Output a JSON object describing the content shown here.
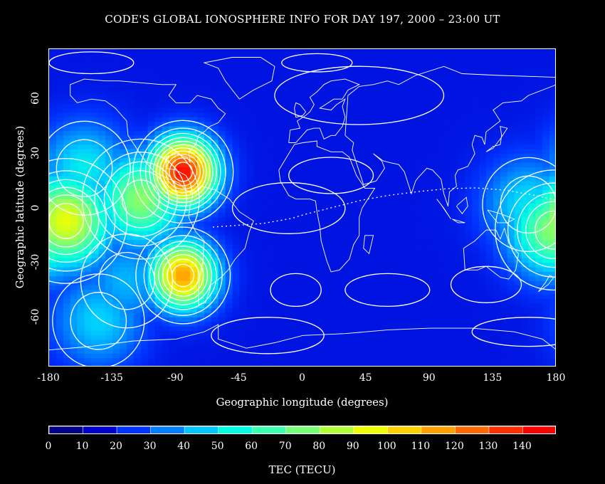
{
  "title": "CODE'S GLOBAL IONOSPHERE INFO FOR DAY 197, 2000 – 23:00 UT",
  "map": {
    "x_label": "Geographic longitude (degrees)",
    "y_label": "Geographic latitude (degrees)",
    "x_ticks": [
      "-180",
      "-135",
      "-90",
      "-45",
      "0",
      "45",
      "90",
      "135",
      "180"
    ],
    "y_ticks": [
      "60",
      "30",
      "0",
      "-30",
      "-60"
    ],
    "x_range": [
      -180,
      180
    ],
    "y_range": [
      -87.5,
      87.5
    ]
  },
  "colorbar": {
    "title": "TEC (TECU)",
    "labels": [
      "0",
      "10",
      "20",
      "30",
      "40",
      "50",
      "60",
      "70",
      "80",
      "90",
      "100",
      "110",
      "120",
      "130",
      "140"
    ],
    "range": [
      0,
      150
    ],
    "colors": [
      "#00008b",
      "#0000cd",
      "#0033ff",
      "#0080ff",
      "#00c8ff",
      "#00ffe0",
      "#3cffb0",
      "#78ff78",
      "#b4ff3c",
      "#f0ff00",
      "#ffd000",
      "#ffa000",
      "#ff6a00",
      "#ff3000",
      "#ff0000"
    ]
  },
  "chart_data": {
    "type": "heatmap",
    "title": "CODE'S GLOBAL IONOSPHERE INFO FOR DAY 197, 2000 – 23:00 UT",
    "xlabel": "Geographic longitude (degrees)",
    "ylabel": "Geographic latitude (degrees)",
    "xlim": [
      -180,
      180
    ],
    "ylim": [
      -87.5,
      87.5
    ],
    "colorbar_label": "TEC (TECU)",
    "value_range": [
      0,
      150
    ],
    "background_value": 15,
    "peaks": [
      {
        "lon": -85,
        "lat": 20,
        "value": 148
      },
      {
        "lon": -85,
        "lat": -37,
        "value": 118
      },
      {
        "lon": -168,
        "lat": -7,
        "value": 95
      },
      {
        "lon": -115,
        "lat": 5,
        "value": 78
      },
      {
        "lon": -155,
        "lat": 22,
        "value": 50
      },
      {
        "lon": -145,
        "lat": -62,
        "value": 45
      },
      {
        "lon": 178,
        "lat": -12,
        "value": 78
      },
      {
        "lon": 160,
        "lat": 2,
        "value": 48
      },
      {
        "lon": -125,
        "lat": -40,
        "value": 40
      }
    ]
  }
}
